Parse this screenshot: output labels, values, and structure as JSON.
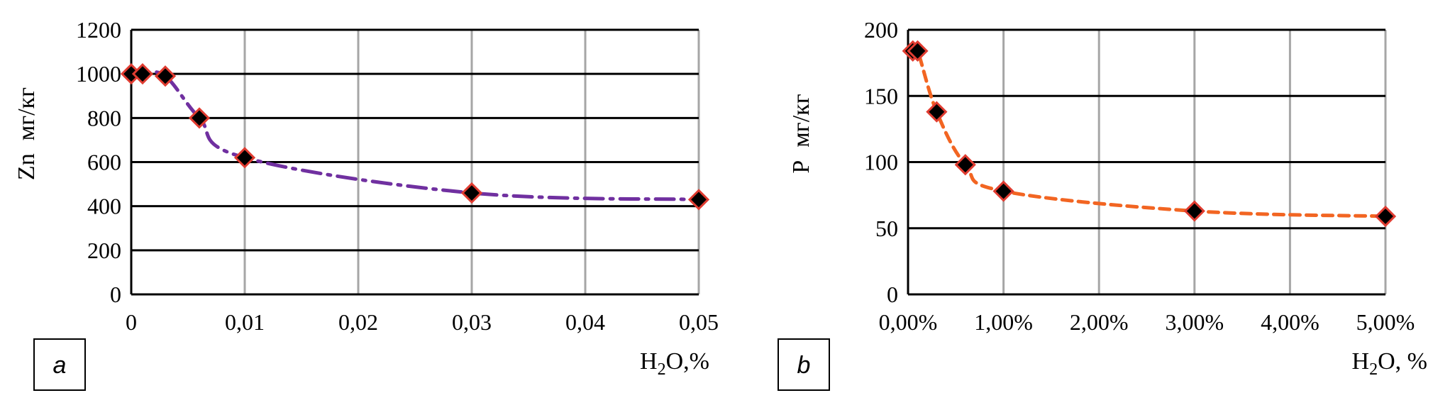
{
  "chart_data": [
    {
      "type": "line",
      "panel_label": "a",
      "ylabel_var": "Zn",
      "ylabel_unit": "мг/кг",
      "xlabel_main": "H",
      "xlabel_sub": "2",
      "xlabel_rest": "O,%",
      "xlim": [
        0,
        0.05
      ],
      "ylim": [
        0,
        1200
      ],
      "xticks": [
        0,
        0.01,
        0.02,
        0.03,
        0.04,
        0.05
      ],
      "xtick_labels": [
        "0",
        "0,01",
        "0,02",
        "0,03",
        "0,04",
        "0,05"
      ],
      "yticks": [
        0,
        200,
        400,
        600,
        800,
        1000,
        1200
      ],
      "ytick_labels": [
        "0",
        "200",
        "400",
        "600",
        "800",
        "1000",
        "1200"
      ],
      "grid": true,
      "line_color": "#7030A0",
      "line_style": "dash-dot",
      "marker_color": "#000000",
      "marker_edge": "#E03C31",
      "series": [
        {
          "x": [
            0,
            0.001,
            0.003,
            0.006,
            0.01,
            0.03,
            0.05
          ],
          "y": [
            1000,
            1000,
            990,
            800,
            620,
            460,
            430
          ]
        }
      ]
    },
    {
      "type": "line",
      "panel_label": "b",
      "ylabel_var": "P",
      "ylabel_unit": "мг/кг",
      "xlabel_main": "H",
      "xlabel_sub": "2",
      "xlabel_rest": "O, %",
      "xlim": [
        0,
        5
      ],
      "ylim": [
        0,
        200
      ],
      "xticks": [
        0,
        1,
        2,
        3,
        4,
        5
      ],
      "xtick_labels": [
        "0,00%",
        "1,00%",
        "2,00%",
        "3,00%",
        "4,00%",
        "5,00%"
      ],
      "yticks": [
        0,
        50,
        100,
        150,
        200
      ],
      "ytick_labels": [
        "0",
        "50",
        "100",
        "150",
        "200"
      ],
      "grid": true,
      "line_color": "#F26522",
      "line_style": "dashed",
      "marker_color": "#000000",
      "marker_edge": "#E03C31",
      "series": [
        {
          "x": [
            0.05,
            0.1,
            0.3,
            0.6,
            1.0,
            3.0,
            5.0
          ],
          "y": [
            184,
            184,
            138,
            98,
            78,
            63,
            59
          ]
        }
      ]
    }
  ]
}
